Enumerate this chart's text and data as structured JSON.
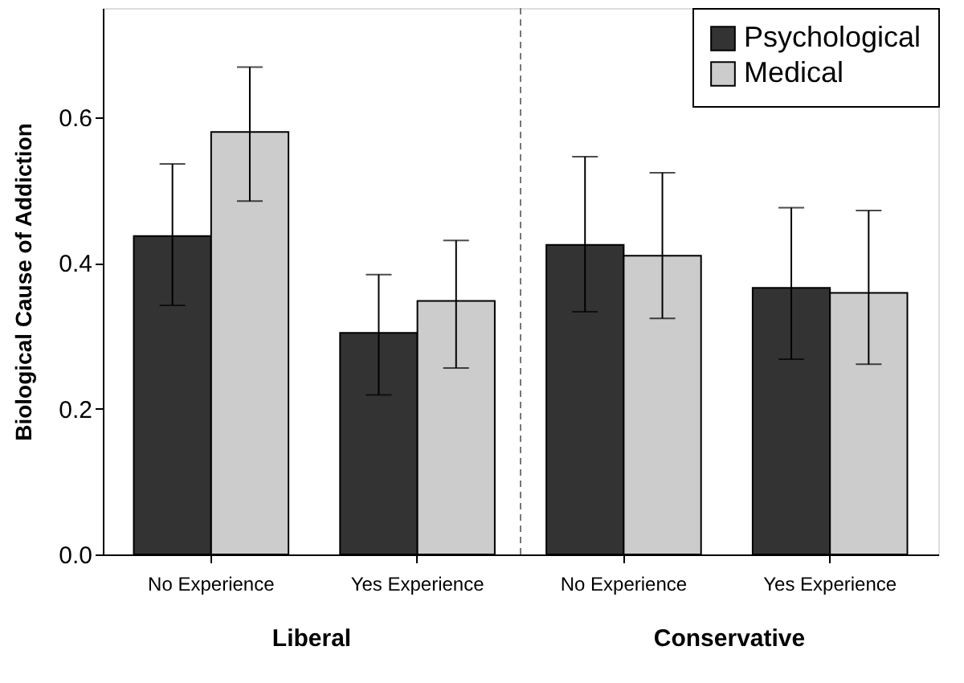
{
  "chart_data": {
    "type": "bar",
    "ylabel": "Biological Cause of Addiction",
    "categories": [
      "No Experience",
      "Yes Experience",
      "No Experience",
      "Yes Experience"
    ],
    "series": [
      {
        "name": "Psychological",
        "color": "#333333",
        "values": [
          0.437,
          0.304,
          0.425,
          0.366
        ],
        "errors": [
          [
            0.342,
            0.536
          ],
          [
            0.219,
            0.384
          ],
          [
            0.333,
            0.546
          ],
          [
            0.268,
            0.476
          ]
        ]
      },
      {
        "name": "Medical",
        "color": "#cccccc",
        "values": [
          0.58,
          0.348,
          0.41,
          0.359
        ],
        "errors": [
          [
            0.485,
            0.669
          ],
          [
            0.256,
            0.431
          ],
          [
            0.324,
            0.524
          ],
          [
            0.261,
            0.472
          ]
        ]
      }
    ],
    "annotations": [
      "Liberal",
      "Conservative"
    ],
    "ylim": [
      0,
      0.75
    ],
    "yticks": [
      {
        "value": 0,
        "label": "0.0"
      },
      0.2,
      0.4,
      0.6
    ],
    "grid": false,
    "legend": "top right"
  }
}
